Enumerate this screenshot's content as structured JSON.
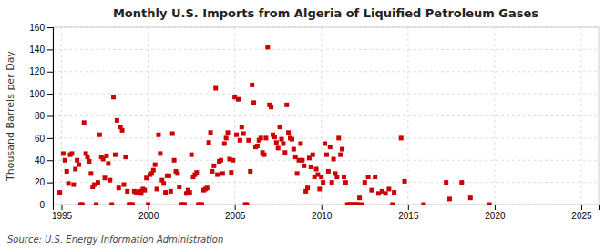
{
  "chart_data": {
    "type": "scatter",
    "title": "Monthly U.S. Imports from Algeria of Liquified Petroleum Gases",
    "ylabel": "Thousand Barrels per Day",
    "annotation": "Source: U.S. Energy Information Administration",
    "color": "#cc0000",
    "marker": "square",
    "grid": true,
    "xlim": [
      1994.5,
      2026
    ],
    "ylim": [
      0,
      160
    ],
    "xticks": [
      1995,
      2000,
      2005,
      2010,
      2015,
      2020,
      2025
    ],
    "yticks": [
      0,
      20,
      40,
      60,
      80,
      100,
      120,
      140,
      160
    ],
    "x": [
      1994.9,
      1995.1,
      1995.2,
      1995.3,
      1995.4,
      1995.5,
      1995.6,
      1995.7,
      1995.8,
      1995.9,
      1996.0,
      1996.1,
      1996.2,
      1996.3,
      1996.4,
      1996.5,
      1996.6,
      1996.7,
      1996.8,
      1996.9,
      1997.0,
      1997.1,
      1997.2,
      1997.3,
      1997.4,
      1997.5,
      1997.6,
      1997.7,
      1997.8,
      1997.9,
      1998.0,
      1998.1,
      1998.2,
      1998.3,
      1998.4,
      1998.5,
      1998.6,
      1998.7,
      1998.8,
      1998.9,
      1999.0,
      1999.1,
      1999.2,
      1999.3,
      1999.4,
      1999.5,
      1999.6,
      1999.7,
      1999.8,
      1999.9,
      2000.0,
      2000.1,
      2000.2,
      2000.3,
      2000.4,
      2000.5,
      2000.6,
      2000.7,
      2000.8,
      2000.9,
      2001.0,
      2001.1,
      2001.2,
      2001.3,
      2001.4,
      2001.5,
      2001.6,
      2001.7,
      2001.8,
      2001.9,
      2002.0,
      2002.1,
      2002.2,
      2002.3,
      2002.4,
      2002.5,
      2002.6,
      2002.7,
      2002.8,
      2002.9,
      2003.0,
      2003.1,
      2003.2,
      2003.3,
      2003.4,
      2003.5,
      2003.6,
      2003.7,
      2003.8,
      2003.9,
      2004.0,
      2004.1,
      2004.2,
      2004.3,
      2004.4,
      2004.5,
      2004.6,
      2004.7,
      2004.8,
      2004.9,
      2005.0,
      2005.1,
      2005.2,
      2005.3,
      2005.4,
      2005.5,
      2005.6,
      2005.7,
      2005.8,
      2005.9,
      2006.0,
      2006.1,
      2006.2,
      2006.3,
      2006.4,
      2006.5,
      2006.6,
      2006.7,
      2006.8,
      2006.9,
      2007.0,
      2007.1,
      2007.2,
      2007.3,
      2007.4,
      2007.5,
      2007.6,
      2007.7,
      2007.8,
      2007.9,
      2008.0,
      2008.1,
      2008.2,
      2008.3,
      2008.4,
      2008.5,
      2008.6,
      2008.7,
      2008.8,
      2008.9,
      2009.0,
      2009.1,
      2009.2,
      2009.3,
      2009.4,
      2009.5,
      2009.6,
      2009.7,
      2009.8,
      2009.9,
      2010.0,
      2010.1,
      2010.2,
      2010.3,
      2010.4,
      2010.5,
      2010.6,
      2010.7,
      2010.8,
      2010.9,
      2011.0,
      2011.1,
      2011.2,
      2011.3,
      2011.4,
      2011.5,
      2011.6,
      2011.7,
      2011.8,
      2011.9,
      2012.0,
      2012.1,
      2012.2,
      2012.3,
      2012.5,
      2012.7,
      2012.9,
      2013.1,
      2013.3,
      2013.5,
      2013.7,
      2013.9,
      2014.1,
      2014.2,
      2014.6,
      2014.8,
      2015.9,
      2017.2,
      2017.4,
      2018.1,
      2018.6,
      2019.7
    ],
    "values": [
      11,
      46,
      40,
      30,
      19,
      45,
      46,
      18,
      32,
      40,
      36,
      0,
      0,
      74,
      46,
      43,
      39,
      28,
      16,
      18,
      0,
      20,
      63,
      43,
      41,
      24,
      44,
      37,
      22,
      0,
      97,
      45,
      76,
      15,
      70,
      67,
      18,
      43,
      12,
      0,
      0,
      0,
      12,
      11,
      11,
      12,
      10,
      14,
      13,
      24,
      0,
      27,
      28,
      31,
      36,
      14,
      63,
      46,
      22,
      19,
      11,
      26,
      26,
      12,
      64,
      40,
      30,
      28,
      16,
      0,
      0,
      0,
      10,
      13,
      11,
      45,
      25,
      27,
      29,
      0,
      0,
      0,
      13,
      14,
      15,
      56,
      65,
      30,
      35,
      105,
      27,
      39,
      40,
      28,
      55,
      60,
      65,
      41,
      29,
      40,
      97,
      63,
      95,
      58,
      70,
      64,
      0,
      0,
      58,
      30,
      108,
      92,
      52,
      53,
      58,
      60,
      47,
      45,
      60,
      142,
      90,
      88,
      63,
      61,
      56,
      51,
      70,
      59,
      55,
      47,
      90,
      65,
      60,
      59,
      50,
      43,
      28,
      40,
      55,
      40,
      35,
      12,
      15,
      42,
      34,
      45,
      25,
      32,
      27,
      14,
      25,
      20,
      55,
      45,
      30,
      52,
      20,
      41,
      28,
      25,
      60,
      45,
      50,
      25,
      20,
      0,
      0,
      0,
      0,
      0,
      0,
      0,
      6,
      0,
      20,
      25,
      13,
      25,
      10,
      12,
      10,
      14,
      0,
      11,
      60,
      21,
      0,
      20,
      5,
      20,
      6,
      0
    ]
  }
}
